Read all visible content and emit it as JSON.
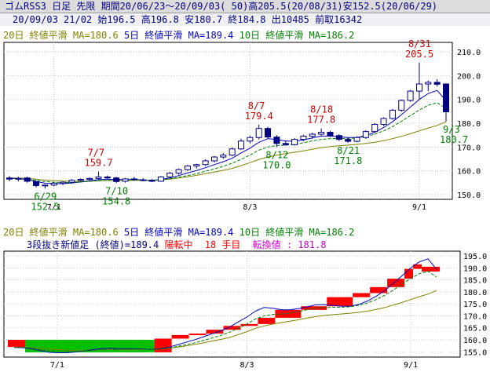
{
  "header": {
    "title": "ゴムRSS3 日足 先限 期間20/06/23～20/09/03( 50)高205.5(20/08/31)安152.5(20/06/29)",
    "info": "20/09/03 21/02 始196.5 高196.8 安180.7 終184.8 出10485 前取16342"
  },
  "upper": {
    "legend": {
      "ma20": "20日 終値平滑 MA=180.6",
      "ma5": "5日 終値平滑 MA=189.4",
      "ma10": "10日 終値平滑 MA=186.2"
    },
    "y_ticks": [
      "210.0",
      "200.0",
      "190.0",
      "180.0",
      "170.0",
      "160.0",
      "150.0"
    ],
    "x_ticks": [
      "7/1",
      "8/3",
      "9/1"
    ],
    "annotations": [
      {
        "date": "8/31",
        "value": "205.5",
        "kind": "high"
      },
      {
        "date": "8/7",
        "value": "179.4",
        "kind": "high"
      },
      {
        "date": "8/18",
        "value": "177.8",
        "kind": "high"
      },
      {
        "date": "7/7",
        "value": "159.7",
        "kind": "high"
      },
      {
        "date": "9/3",
        "value": "180.7",
        "kind": "low"
      },
      {
        "date": "8/12",
        "value": "170.0",
        "kind": "low"
      },
      {
        "date": "8/21",
        "value": "171.8",
        "kind": "low"
      },
      {
        "date": "7/10",
        "value": "154.8",
        "kind": "low"
      },
      {
        "date": "6/29",
        "value": "152.5",
        "kind": "low"
      }
    ]
  },
  "lower": {
    "legend": {
      "ma20": "20日 終値平滑 MA=180.6",
      "ma5": "5日 終値平滑 MA=189.4",
      "ma10": "10日 終値平滑 MA=186.2"
    },
    "status": {
      "prefix": "3段抜き新値足 (終値)=189.4",
      "state": "陽転中",
      "count": "18 手目",
      "reversal": "転換値 : 181.8"
    },
    "y_ticks": [
      "195.0",
      "190.0",
      "185.0",
      "180.0",
      "175.0",
      "170.0",
      "165.0",
      "160.0",
      "155.0"
    ],
    "x_ticks": [
      "7/1",
      "8/3",
      "9/1"
    ]
  },
  "colors": {
    "up_candle": "#ffffff",
    "down_candle": "#000080",
    "ma5": "#0000c0",
    "ma10": "#008000",
    "ma20": "#808000",
    "up_brick": "#ff0000",
    "down_brick": "#00c000",
    "annotation_high": "#cc0000",
    "annotation_low": "#008000"
  },
  "chart_data": [
    {
      "type": "candlestick",
      "title": "ゴムRSS3 日足 先限",
      "ylim": [
        148,
        214
      ],
      "x_ticks": [
        "7/1",
        "8/3",
        "9/1"
      ],
      "grid": true,
      "ohlc": [
        [
          157.0,
          157.8,
          155.6,
          156.5
        ],
        [
          156.5,
          157.5,
          155.5,
          156.8
        ],
        [
          157.0,
          157.5,
          155.0,
          155.6
        ],
        [
          155.5,
          155.8,
          153.0,
          153.8
        ],
        [
          153.8,
          154.2,
          152.5,
          154.0
        ],
        [
          154.0,
          155.2,
          153.5,
          154.8
        ],
        [
          154.7,
          155.6,
          154.0,
          155.2
        ],
        [
          155.2,
          156.5,
          154.6,
          156.0
        ],
        [
          156.0,
          156.8,
          155.5,
          156.4
        ],
        [
          156.4,
          157.2,
          156.0,
          156.8
        ],
        [
          156.8,
          159.7,
          156.2,
          157.4
        ],
        [
          157.4,
          158.0,
          156.6,
          157.0
        ],
        [
          157.0,
          157.5,
          154.8,
          155.5
        ],
        [
          155.6,
          157.0,
          155.0,
          156.6
        ],
        [
          156.6,
          157.4,
          155.8,
          156.3
        ],
        [
          156.2,
          156.9,
          155.6,
          156.0
        ],
        [
          156.0,
          156.5,
          155.2,
          155.6
        ],
        [
          155.6,
          157.8,
          155.4,
          157.4
        ],
        [
          157.4,
          159.5,
          157.0,
          159.0
        ],
        [
          159.0,
          161.0,
          158.4,
          160.5
        ],
        [
          160.5,
          162.5,
          160.0,
          162.0
        ],
        [
          162.0,
          163.0,
          161.0,
          162.6
        ],
        [
          162.6,
          164.8,
          162.0,
          164.2
        ],
        [
          164.2,
          166.2,
          163.5,
          165.8
        ],
        [
          165.8,
          167.5,
          165.0,
          166.6
        ],
        [
          166.6,
          169.8,
          166.2,
          169.2
        ],
        [
          169.2,
          173.5,
          168.8,
          172.5
        ],
        [
          172.5,
          174.8,
          171.5,
          174.0
        ],
        [
          174.0,
          179.4,
          173.2,
          177.8
        ],
        [
          177.8,
          178.5,
          173.6,
          174.2
        ],
        [
          174.2,
          175.0,
          170.0,
          171.5
        ],
        [
          171.5,
          172.8,
          170.5,
          171.0
        ],
        [
          171.0,
          173.8,
          170.6,
          173.2
        ],
        [
          173.2,
          175.2,
          172.4,
          174.6
        ],
        [
          174.6,
          176.0,
          173.5,
          175.4
        ],
        [
          175.4,
          177.8,
          174.8,
          176.2
        ],
        [
          176.2,
          176.8,
          174.2,
          174.8
        ],
        [
          174.8,
          175.4,
          172.6,
          173.2
        ],
        [
          173.2,
          174.0,
          171.8,
          172.4
        ],
        [
          172.4,
          174.5,
          172.0,
          174.0
        ],
        [
          174.0,
          177.0,
          173.4,
          176.5
        ],
        [
          176.5,
          180.0,
          176.0,
          179.5
        ],
        [
          179.5,
          182.5,
          178.8,
          182.0
        ],
        [
          182.0,
          186.0,
          181.5,
          185.5
        ],
        [
          185.5,
          190.0,
          184.8,
          189.6
        ],
        [
          189.6,
          194.0,
          189.0,
          193.5
        ],
        [
          193.5,
          205.5,
          190.0,
          196.5
        ],
        [
          196.5,
          198.0,
          193.5,
          197.2
        ],
        [
          197.2,
          198.5,
          195.4,
          196.4
        ],
        [
          196.5,
          196.8,
          180.7,
          184.8
        ]
      ],
      "series": [
        {
          "name": "20日 終値平滑 MA=180.6",
          "values": [
            157.0,
            156.9,
            156.8,
            156.5,
            156.1,
            155.9,
            155.7,
            155.6,
            155.6,
            155.6,
            155.8,
            155.9,
            155.9,
            155.9,
            156.0,
            156.0,
            156.0,
            156.2,
            156.5,
            157.0,
            157.5,
            158.1,
            158.8,
            159.5,
            160.2,
            161.0,
            162.2,
            163.4,
            164.8,
            165.8,
            166.6,
            167.2,
            167.8,
            168.4,
            169.1,
            169.7,
            170.2,
            170.5,
            170.8,
            171.1,
            171.5,
            172.0,
            172.7,
            173.5,
            174.5,
            175.6,
            176.8,
            178.0,
            179.1,
            180.6
          ]
        },
        {
          "name": "5日 終値平滑 MA=189.4",
          "values": [
            156.8,
            156.7,
            156.3,
            155.5,
            154.8,
            154.6,
            154.6,
            154.9,
            155.3,
            155.8,
            156.3,
            156.5,
            156.3,
            156.3,
            156.3,
            156.2,
            156.0,
            156.3,
            157.0,
            158.0,
            159.1,
            160.1,
            161.3,
            162.6,
            163.8,
            165.3,
            167.5,
            169.5,
            172.0,
            173.5,
            173.2,
            172.5,
            172.5,
            173.0,
            173.8,
            174.6,
            174.6,
            174.3,
            174.0,
            174.0,
            174.8,
            176.2,
            178.2,
            180.6,
            183.6,
            186.8,
            190.0,
            192.5,
            193.8,
            189.4
          ]
        },
        {
          "name": "10日 終値平滑 MA=186.2",
          "values": [
            156.9,
            156.8,
            156.6,
            156.0,
            155.5,
            155.2,
            155.1,
            155.1,
            155.3,
            155.6,
            155.9,
            156.0,
            156.0,
            156.1,
            156.1,
            156.1,
            156.0,
            156.2,
            156.6,
            157.3,
            158.0,
            158.8,
            159.8,
            160.8,
            161.9,
            163.2,
            164.8,
            166.6,
            168.7,
            170.0,
            170.6,
            170.8,
            171.1,
            171.8,
            172.6,
            173.2,
            173.5,
            173.6,
            173.6,
            173.8,
            174.4,
            175.4,
            176.8,
            178.6,
            180.8,
            183.2,
            185.6,
            187.6,
            188.6,
            186.2
          ]
        }
      ]
    },
    {
      "type": "line-break",
      "title": "3段抜き新値足 (終値)=189.4",
      "ylim": [
        152.8,
        197.0
      ],
      "x_ticks": [
        "7/1",
        "8/3",
        "9/1"
      ],
      "grid": true,
      "bricks": [
        {
          "dir": "up",
          "open": 157.0,
          "close": 160.0
        },
        {
          "dir": "down",
          "open": 160.0,
          "close": 154.8
        },
        {
          "dir": "up",
          "open": 154.8,
          "close": 160.5
        },
        {
          "dir": "up",
          "open": 160.5,
          "close": 162.0
        },
        {
          "dir": "up",
          "open": 162.0,
          "close": 162.6
        },
        {
          "dir": "up",
          "open": 162.6,
          "close": 164.2
        },
        {
          "dir": "up",
          "open": 164.2,
          "close": 165.8
        },
        {
          "dir": "up",
          "open": 165.8,
          "close": 166.6
        },
        {
          "dir": "up",
          "open": 166.6,
          "close": 169.2
        },
        {
          "dir": "up",
          "open": 169.2,
          "close": 172.5
        },
        {
          "dir": "up",
          "open": 172.5,
          "close": 174.0
        },
        {
          "dir": "up",
          "open": 174.0,
          "close": 177.8
        },
        {
          "dir": "up",
          "open": 177.8,
          "close": 179.5
        },
        {
          "dir": "up",
          "open": 179.5,
          "close": 182.0
        },
        {
          "dir": "up",
          "open": 182.0,
          "close": 185.5
        },
        {
          "dir": "up",
          "open": 185.5,
          "close": 189.6
        },
        {
          "dir": "up",
          "open": 189.6,
          "close": 191.5
        },
        {
          "dir": "up",
          "open": 188.5,
          "close": 190.5
        }
      ],
      "series": [
        {
          "name": "20日 終値平滑 MA=180.6",
          "values": [
            157.0,
            156.9,
            156.8,
            156.5,
            156.1,
            155.9,
            155.7,
            155.6,
            155.6,
            155.6,
            155.8,
            155.9,
            155.9,
            155.9,
            156.0,
            156.0,
            156.0,
            156.2,
            156.5,
            157.0,
            157.5,
            158.1,
            158.8,
            159.5,
            160.2,
            161.0,
            162.2,
            163.4,
            164.8,
            165.8,
            166.6,
            167.2,
            167.8,
            168.4,
            169.1,
            169.7,
            170.2,
            170.5,
            170.8,
            171.1,
            171.5,
            172.0,
            172.7,
            173.5,
            174.5,
            175.6,
            176.8,
            178.0,
            179.1,
            180.6
          ]
        },
        {
          "name": "5日 終値平滑 MA=189.4",
          "values": [
            156.8,
            156.7,
            156.3,
            155.5,
            154.8,
            154.6,
            154.6,
            154.9,
            155.3,
            155.8,
            156.3,
            156.5,
            156.3,
            156.3,
            156.3,
            156.2,
            156.0,
            156.3,
            157.0,
            158.0,
            159.1,
            160.1,
            161.3,
            162.6,
            163.8,
            165.3,
            167.5,
            169.5,
            172.0,
            173.5,
            173.2,
            172.5,
            172.5,
            173.0,
            173.8,
            174.6,
            174.6,
            174.3,
            174.0,
            174.0,
            174.8,
            176.2,
            178.2,
            180.6,
            183.6,
            186.8,
            190.0,
            192.5,
            193.8,
            189.4
          ]
        },
        {
          "name": "10日 終値平滑 MA=186.2",
          "values": [
            156.9,
            156.8,
            156.6,
            156.0,
            155.5,
            155.2,
            155.1,
            155.1,
            155.3,
            155.6,
            155.9,
            156.0,
            156.0,
            156.1,
            156.1,
            156.1,
            156.0,
            156.2,
            156.6,
            157.3,
            158.0,
            158.8,
            159.8,
            160.8,
            161.9,
            163.2,
            164.8,
            166.6,
            168.7,
            170.0,
            170.6,
            170.8,
            171.1,
            171.8,
            172.6,
            173.2,
            173.5,
            173.6,
            173.6,
            173.8,
            174.4,
            175.4,
            176.8,
            178.6,
            180.8,
            183.2,
            185.6,
            187.6,
            188.6,
            186.2
          ]
        }
      ]
    }
  ]
}
